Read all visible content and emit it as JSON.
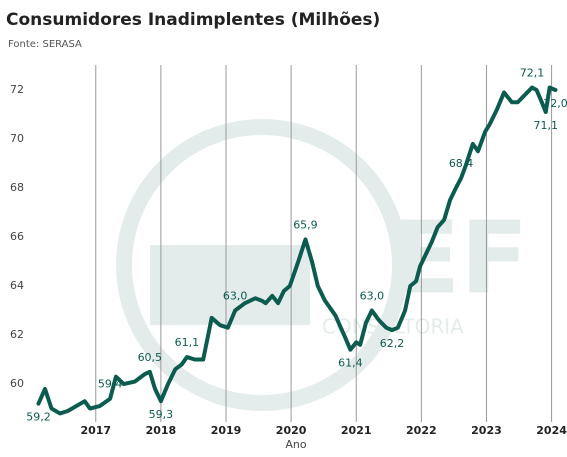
{
  "chart_data": {
    "type": "line",
    "title": "Consumidores Inadimplentes (Milhões)",
    "subtitle": "Fonte: SERASA",
    "x_label": "Ano",
    "watermark": {
      "logo": "EF",
      "text": "CONSULTORIA"
    },
    "x": [
      2016.12,
      2016.22,
      2016.32,
      2016.45,
      2016.57,
      2016.83,
      2016.91,
      2017.06,
      2017.22,
      2017.31,
      2017.43,
      2017.6,
      2017.75,
      2017.83,
      2017.91,
      2018.0,
      2018.11,
      2018.22,
      2018.32,
      2018.4,
      2018.52,
      2018.65,
      2018.78,
      2018.91,
      2019.03,
      2019.14,
      2019.29,
      2019.45,
      2019.55,
      2019.61,
      2019.71,
      2019.8,
      2019.89,
      2019.98,
      2020.11,
      2020.22,
      2020.32,
      2020.41,
      2020.52,
      2020.68,
      2020.83,
      2020.91,
      2021.0,
      2021.06,
      2021.15,
      2021.24,
      2021.35,
      2021.46,
      2021.55,
      2021.64,
      2021.75,
      2021.83,
      2021.92,
      2021.98,
      2022.07,
      2022.16,
      2022.25,
      2022.35,
      2022.44,
      2022.53,
      2022.61,
      2022.68,
      2022.79,
      2022.87,
      2022.98,
      2023.05,
      2023.16,
      2023.27,
      2023.39,
      2023.48,
      2023.59,
      2023.7,
      2023.77,
      2023.85,
      2023.91,
      2023.97,
      2024.06
    ],
    "series": [
      {
        "name": "Consumidores Inadimplentes",
        "color": "#0b5b4f",
        "values": [
          59.2,
          59.8,
          59.0,
          58.8,
          58.9,
          59.3,
          59.0,
          59.1,
          59.4,
          60.3,
          60.0,
          60.1,
          60.4,
          60.5,
          59.8,
          59.3,
          60.0,
          60.6,
          60.8,
          61.1,
          61.0,
          61.0,
          62.7,
          62.4,
          62.3,
          63.0,
          63.3,
          63.5,
          63.4,
          63.3,
          63.6,
          63.3,
          63.8,
          64.0,
          65.0,
          65.9,
          65.0,
          64.0,
          63.4,
          62.8,
          61.9,
          61.4,
          61.7,
          61.6,
          62.5,
          63.0,
          62.6,
          62.3,
          62.2,
          62.3,
          63.0,
          64.0,
          64.2,
          64.8,
          65.3,
          65.8,
          66.4,
          66.7,
          67.5,
          68.0,
          68.4,
          68.9,
          69.8,
          69.5,
          70.3,
          70.6,
          71.2,
          71.9,
          71.5,
          71.5,
          71.8,
          72.1,
          72.0,
          71.5,
          71.1,
          72.1,
          72.0
        ],
        "value_labels": [
          "59,2",
          null,
          null,
          null,
          null,
          null,
          null,
          null,
          "59,4",
          null,
          null,
          null,
          null,
          "60,5",
          null,
          "59,3",
          null,
          null,
          null,
          "61,1",
          null,
          null,
          null,
          null,
          null,
          "63,0",
          null,
          null,
          null,
          null,
          null,
          null,
          null,
          null,
          null,
          "65,9",
          null,
          null,
          null,
          null,
          null,
          "61,4",
          null,
          null,
          null,
          "63,0",
          null,
          null,
          "62,2",
          null,
          null,
          null,
          null,
          null,
          null,
          null,
          null,
          null,
          null,
          null,
          "68,4",
          null,
          null,
          null,
          null,
          null,
          null,
          null,
          null,
          null,
          null,
          "72,1",
          null,
          null,
          "71,1",
          null,
          "72,0"
        ]
      }
    ],
    "xlim": [
      2015.99,
      2024.16
    ],
    "xticks": [
      2017,
      2018,
      2019,
      2020,
      2021,
      2022,
      2023,
      2024
    ],
    "ylim": [
      58.45,
      73.02
    ],
    "yticks": [
      60,
      62,
      64,
      66,
      68,
      70,
      72
    ],
    "grid": "x"
  }
}
